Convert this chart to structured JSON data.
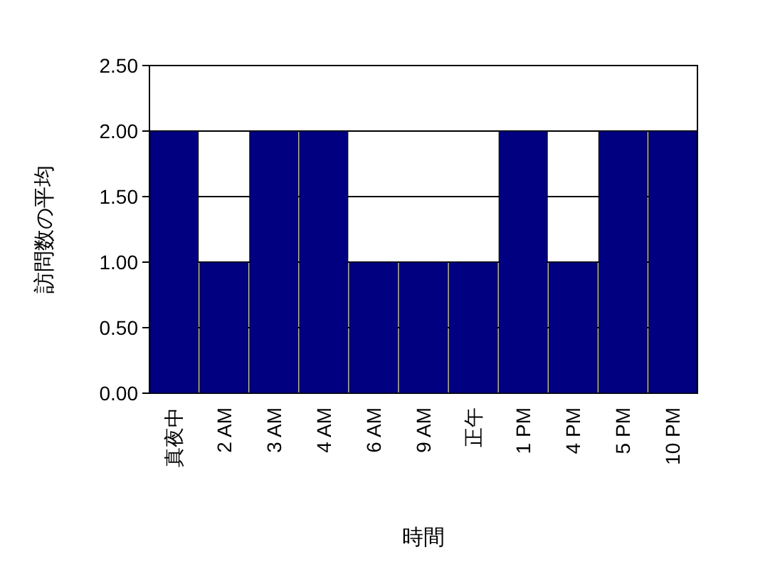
{
  "chart_data": {
    "type": "bar",
    "xlabel": "時間",
    "ylabel": "訪問数の平均",
    "categories": [
      "真夜中",
      "2 AM",
      "3 AM",
      "4 AM",
      "6 AM",
      "9 AM",
      "正午",
      "1 PM",
      "4 PM",
      "5 PM",
      "10 PM"
    ],
    "values": [
      2,
      1,
      2,
      2,
      1,
      1,
      1,
      2,
      1,
      2,
      2
    ],
    "color": "#000080",
    "ylim": [
      0,
      2.5
    ],
    "yticks": [
      {
        "value": 0,
        "label": "0.00"
      },
      {
        "value": 0.5,
        "label": "0.50"
      },
      {
        "value": 1,
        "label": "1.00"
      },
      {
        "value": 1.5,
        "label": "1.50"
      },
      {
        "value": 2,
        "label": "2.00"
      },
      {
        "value": 2.5,
        "label": "2.50"
      }
    ],
    "grid": "y"
  }
}
